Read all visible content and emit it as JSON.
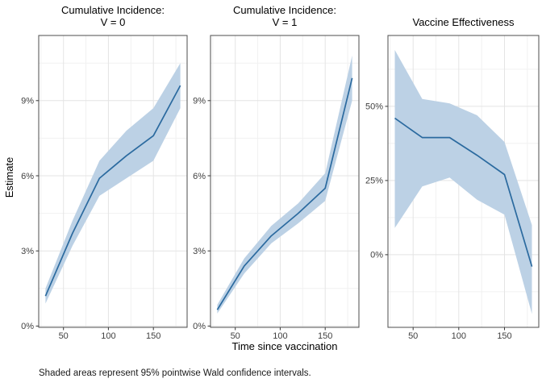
{
  "figure": {
    "y_axis_title": "Estimate",
    "x_axis_title": "Time since vaccination",
    "caption": "Shaded areas represent 95% pointwise Wald confidence intervals.",
    "colors": {
      "line": "#2b6a9f",
      "ribbon": "#bcd1e5",
      "grid_major": "#e4e4e4",
      "grid_minor": "#f1f1f1",
      "panel_border": "#4d4d4d",
      "tick_mark": "#333333",
      "axis_text": "#404040",
      "background": "#ffffff"
    }
  },
  "chart_data": {
    "type": "line",
    "title": "",
    "xlabel": "Time since vaccination",
    "ylabel": "Estimate",
    "x": [
      30,
      60,
      90,
      120,
      150,
      180
    ],
    "x_range": [
      22.5,
      187.5
    ],
    "x_ticks": [
      50,
      100,
      150
    ],
    "x_minor": [
      25,
      75,
      125,
      175
    ],
    "grid": true,
    "legend": "none",
    "units": "percent",
    "panels": [
      {
        "title_lines": [
          "Cumulative Incidence:",
          "V = 0"
        ],
        "y_range": [
          -0.05,
          11.6
        ],
        "y_ticks": {
          "values": [
            0,
            3,
            6,
            9
          ],
          "labels": [
            "0%",
            "3%",
            "6%",
            "9%"
          ]
        },
        "y_minor": [
          1.5,
          4.5,
          7.5,
          10.5
        ],
        "series": [
          {
            "name": "estimate",
            "values": [
              1.2,
              3.7,
              5.9,
              6.8,
              7.6,
              9.6
            ]
          },
          {
            "name": "ci_lower",
            "values": [
              0.9,
              3.2,
              5.2,
              5.9,
              6.6,
              8.7
            ]
          },
          {
            "name": "ci_upper",
            "values": [
              1.5,
              4.2,
              6.6,
              7.8,
              8.7,
              10.5
            ]
          }
        ]
      },
      {
        "title_lines": [
          "Cumulative Incidence:",
          "V = 1"
        ],
        "y_range": [
          -0.05,
          11.6
        ],
        "y_ticks": {
          "values": [
            0,
            3,
            6,
            9
          ],
          "labels": [
            "0%",
            "3%",
            "6%",
            "9%"
          ]
        },
        "y_minor": [
          1.5,
          4.5,
          7.5,
          10.5
        ],
        "series": [
          {
            "name": "estimate",
            "values": [
              0.65,
              2.4,
              3.6,
              4.5,
              5.5,
              9.9
            ]
          },
          {
            "name": "ci_lower",
            "values": [
              0.5,
              2.1,
              3.3,
              4.1,
              5.0,
              9.0
            ]
          },
          {
            "name": "ci_upper",
            "values": [
              0.85,
              2.7,
              4.0,
              4.9,
              6.1,
              10.8
            ]
          }
        ]
      },
      {
        "title_lines": [
          "Vaccine Effectiveness"
        ],
        "y_range": [
          -24.5,
          73.9
        ],
        "y_ticks": {
          "values": [
            0,
            25,
            50
          ],
          "labels": [
            "0%",
            "25%",
            "50%"
          ]
        },
        "y_minor": [
          -12.5,
          12.5,
          37.5,
          62.5
        ],
        "series": [
          {
            "name": "estimate",
            "values": [
              46,
              39.5,
              39.5,
              33.5,
              27,
              -4
            ]
          },
          {
            "name": "ci_lower",
            "values": [
              9,
              23,
              26,
              18.5,
              13.5,
              -20
            ]
          },
          {
            "name": "ci_upper",
            "values": [
              69,
              52.5,
              51,
              47,
              38,
              10
            ]
          }
        ]
      }
    ]
  }
}
